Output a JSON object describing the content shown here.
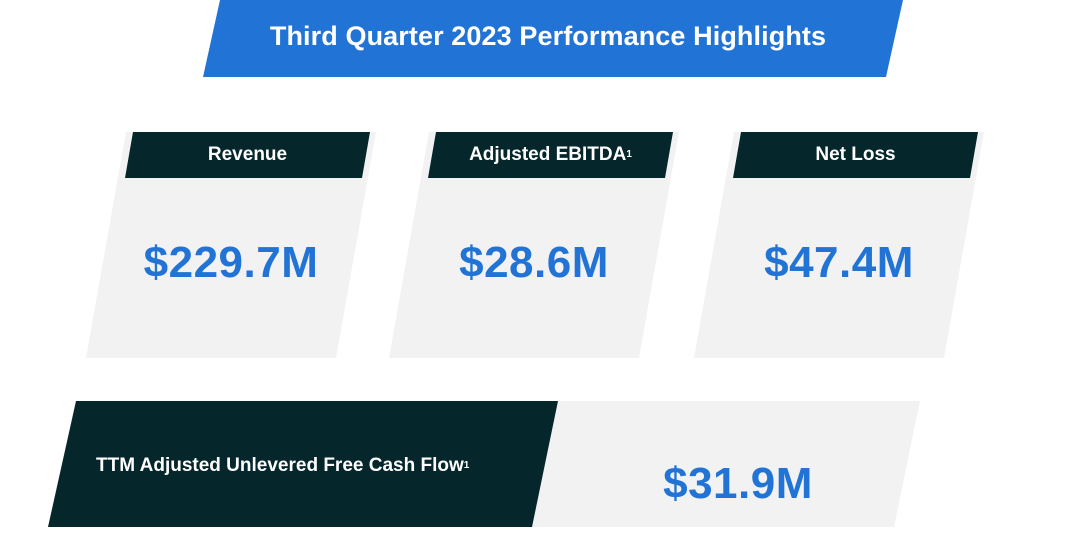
{
  "banner": {
    "title": "Third Quarter 2023 Performance Highlights"
  },
  "metrics": [
    {
      "label": "Revenue",
      "footnote": "",
      "value": "$229.7M"
    },
    {
      "label": "Adjusted EBITDA",
      "footnote": "1",
      "value": "$28.6M"
    },
    {
      "label": "Net Loss",
      "footnote": "",
      "value": "$47.4M"
    }
  ],
  "ttm": {
    "label": "TTM Adjusted Unlevered Free Cash Flow",
    "footnote": "1",
    "value": "$31.9M"
  },
  "colors": {
    "accent_blue": "#2174d5",
    "dark_teal": "#05262b",
    "card_gray": "#f2f2f2"
  }
}
